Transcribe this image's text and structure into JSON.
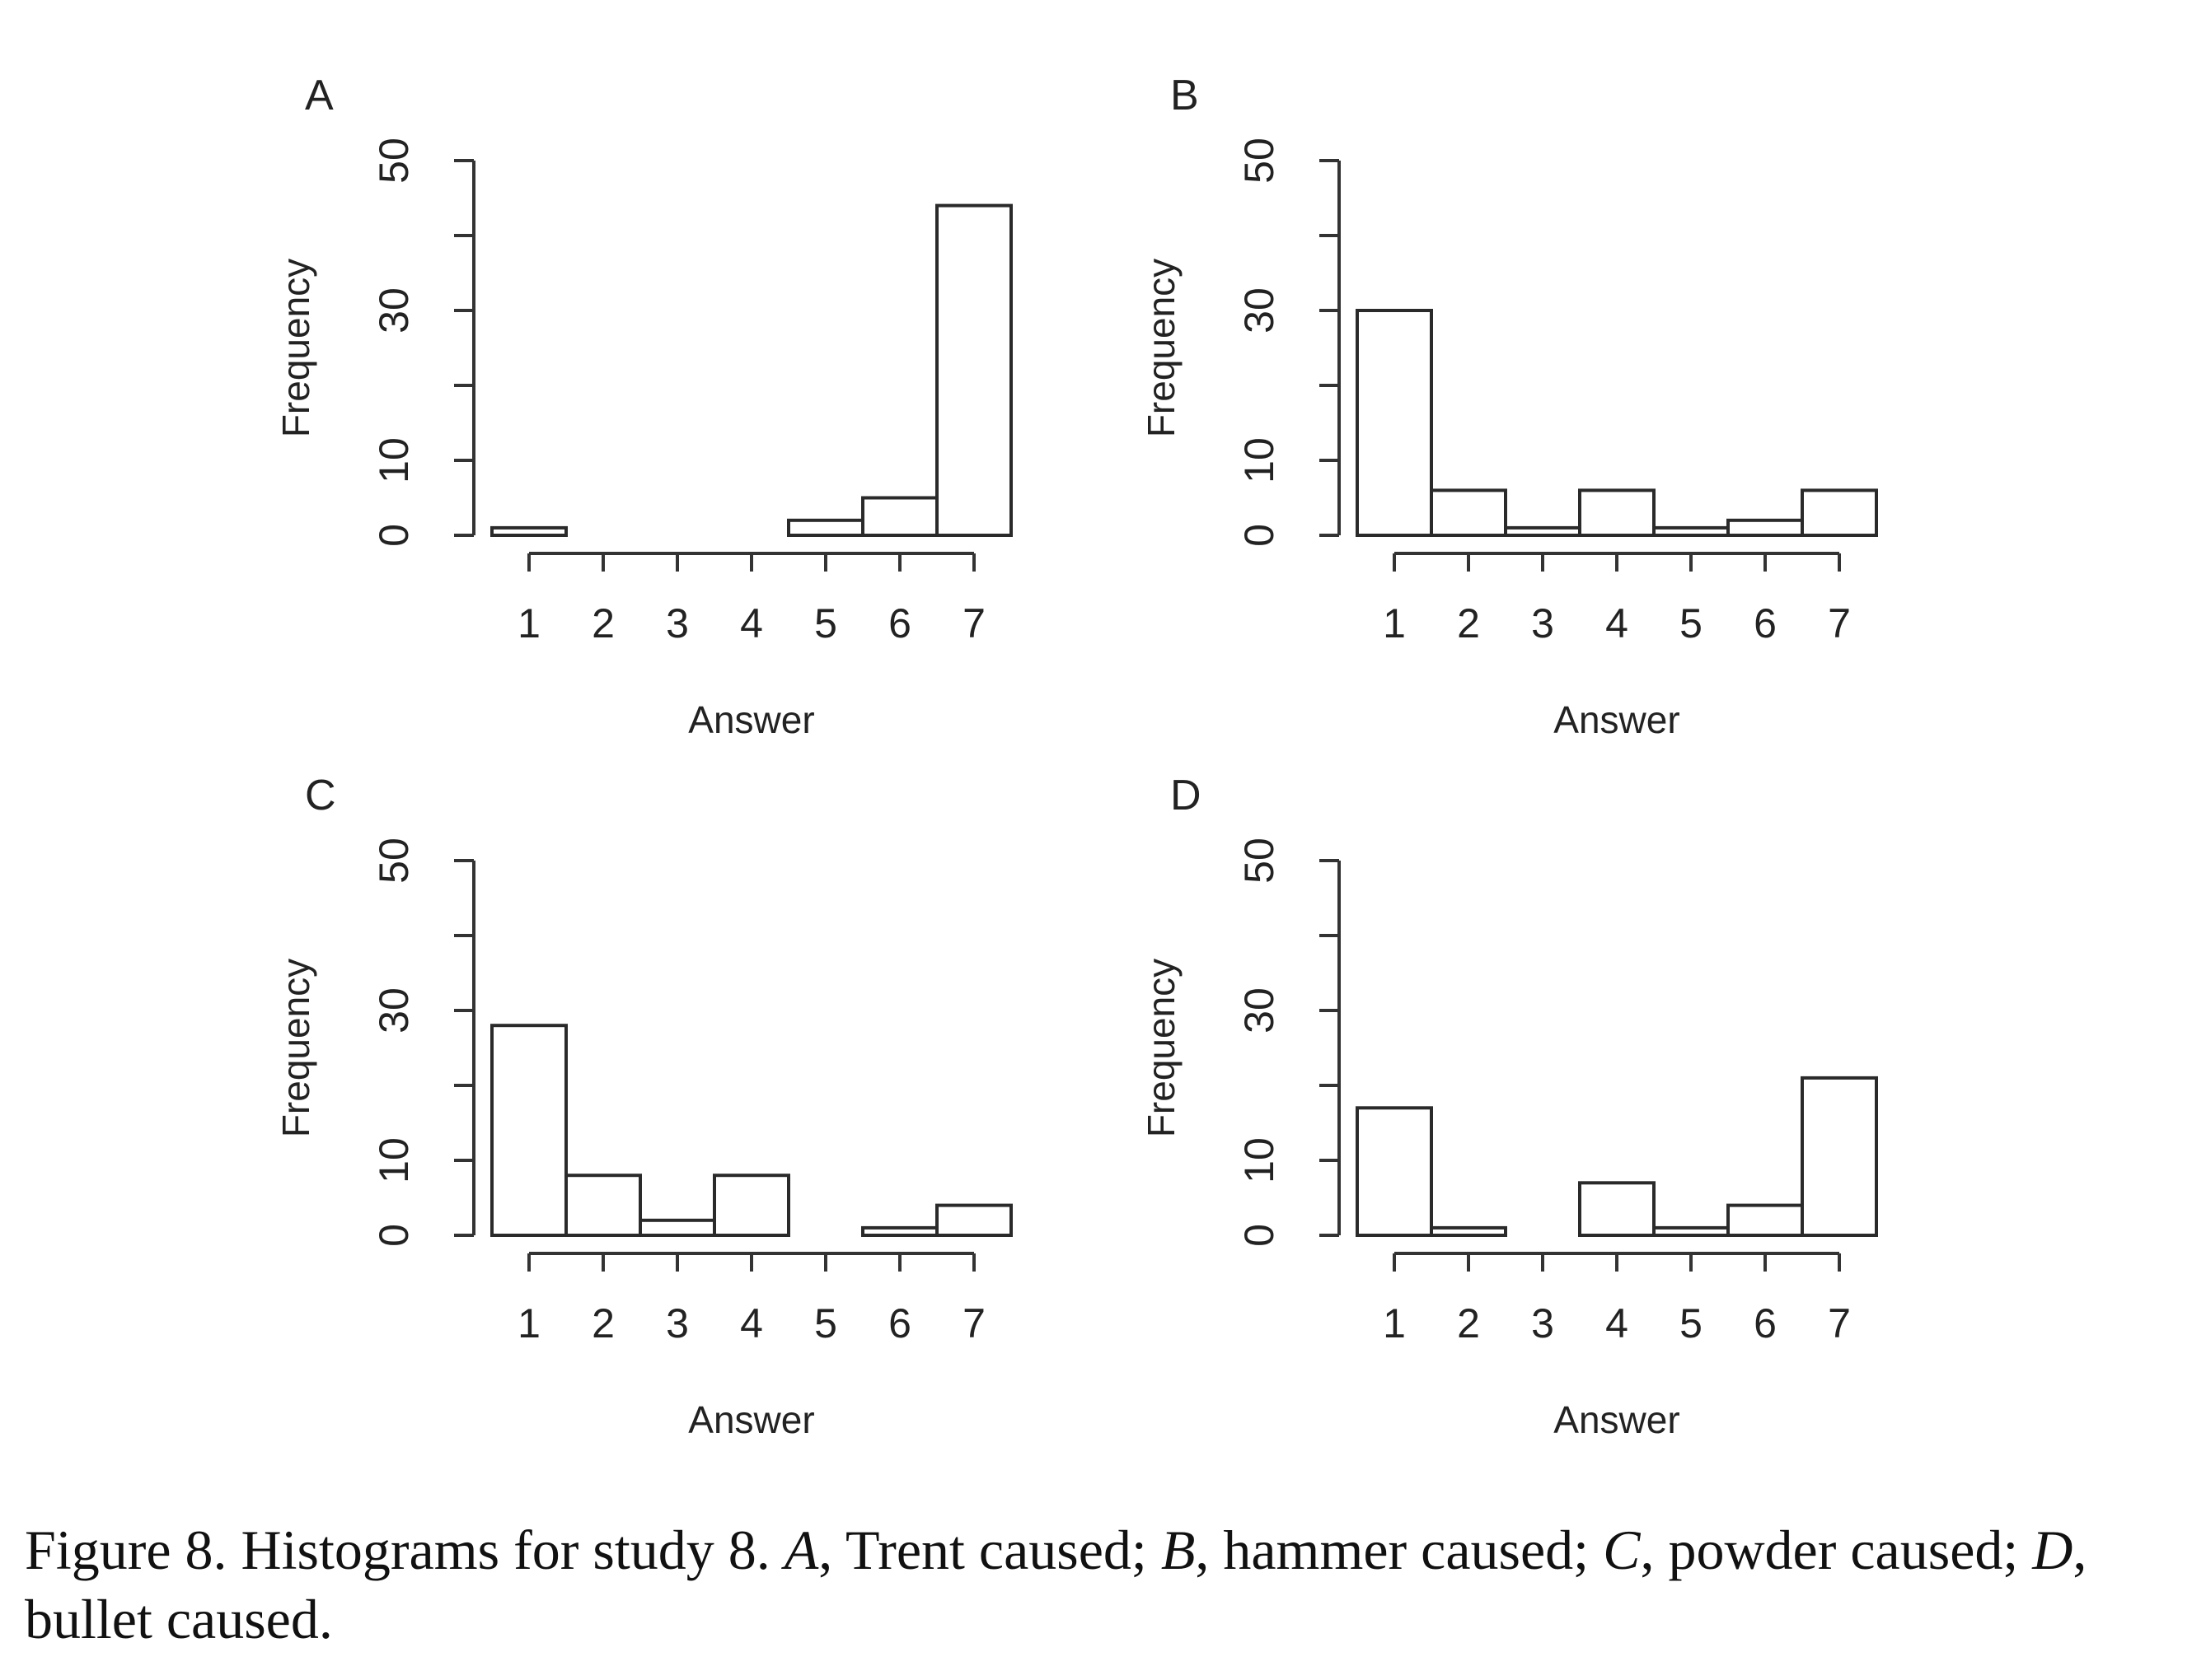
{
  "chart_data": [
    {
      "type": "bar",
      "panel_label": "A",
      "categories": [
        "1",
        "2",
        "3",
        "4",
        "5",
        "6",
        "7"
      ],
      "values": [
        1,
        0,
        0,
        0,
        2,
        5,
        44
      ],
      "xlabel": "Answer",
      "ylabel": "Frequency",
      "yticks": [
        "0",
        "10",
        "30",
        "50"
      ],
      "ylim": [
        0,
        50
      ],
      "grid": false
    },
    {
      "type": "bar",
      "panel_label": "B",
      "categories": [
        "1",
        "2",
        "3",
        "4",
        "5",
        "6",
        "7"
      ],
      "values": [
        30,
        6,
        1,
        6,
        1,
        2,
        6
      ],
      "xlabel": "Answer",
      "ylabel": "Frequency",
      "yticks": [
        "0",
        "10",
        "30",
        "50"
      ],
      "ylim": [
        0,
        50
      ],
      "grid": false
    },
    {
      "type": "bar",
      "panel_label": "C",
      "categories": [
        "1",
        "2",
        "3",
        "4",
        "5",
        "6",
        "7"
      ],
      "values": [
        28,
        8,
        2,
        8,
        0,
        1,
        4
      ],
      "xlabel": "Answer",
      "ylabel": "Frequency",
      "yticks": [
        "0",
        "10",
        "30",
        "50"
      ],
      "ylim": [
        0,
        50
      ],
      "grid": false
    },
    {
      "type": "bar",
      "panel_label": "D",
      "categories": [
        "1",
        "2",
        "3",
        "4",
        "5",
        "6",
        "7"
      ],
      "values": [
        17,
        1,
        0,
        7,
        1,
        4,
        21
      ],
      "xlabel": "Answer",
      "ylabel": "Frequency",
      "yticks": [
        "0",
        "10",
        "30",
        "50"
      ],
      "ylim": [
        0,
        50
      ],
      "grid": false
    }
  ],
  "caption": {
    "label": "Figure 8.",
    "intro": " Histograms for study 8. ",
    "a_letter": "A",
    "a_text": ", Trent caused; ",
    "b_letter": "B",
    "b_text": ", hammer caused; ",
    "c_letter": "C",
    "c_text": ", powder caused; ",
    "d_letter": "D",
    "d_text": ", bullet caused."
  }
}
